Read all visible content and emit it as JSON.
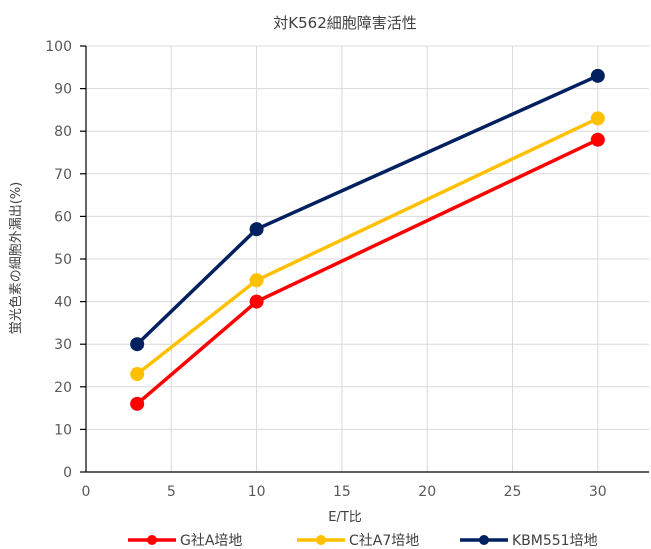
{
  "chart_data": {
    "type": "line",
    "title": "対K562細胞障害活性",
    "xlabel": "E/T比",
    "ylabel": "蛍光色素の細胞外漏出(%)",
    "xlim": [
      0,
      33
    ],
    "ylim": [
      0,
      100
    ],
    "x_ticks": [
      0,
      5,
      10,
      15,
      20,
      25,
      30
    ],
    "y_ticks": [
      0,
      10,
      20,
      30,
      40,
      50,
      60,
      70,
      80,
      90,
      100
    ],
    "grid": true,
    "legend_position": "bottom",
    "x": [
      3,
      10,
      30
    ],
    "series": [
      {
        "name": "G社A培地",
        "color": "#ff0000",
        "values": [
          16,
          40,
          78
        ]
      },
      {
        "name": "C社A7培地",
        "color": "#ffc000",
        "values": [
          23,
          45,
          83
        ]
      },
      {
        "name": "KBM551培地",
        "color": "#002060",
        "values": [
          30,
          57,
          93
        ]
      }
    ]
  }
}
